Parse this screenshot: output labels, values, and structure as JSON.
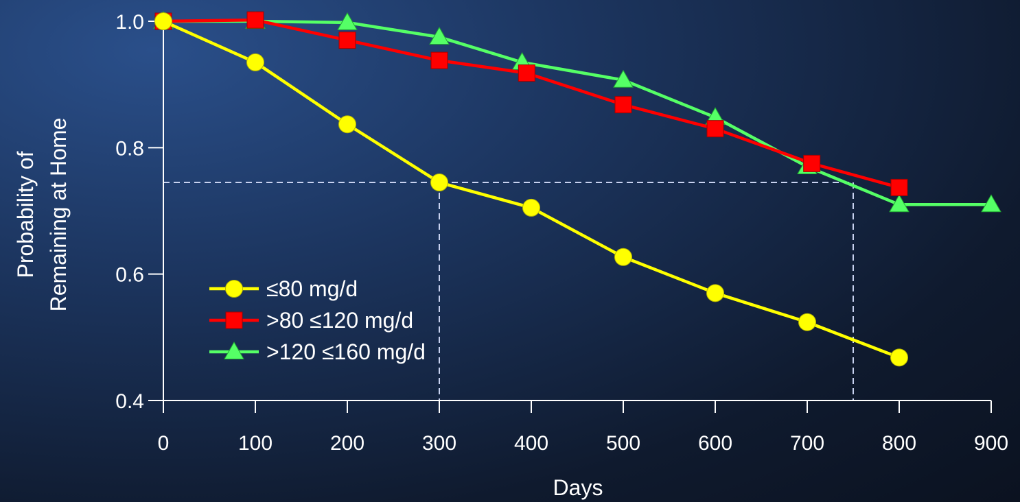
{
  "chart_data": {
    "type": "line",
    "xlabel": "Days",
    "ylabel_lines": [
      "Probability of",
      "Remaining at Home"
    ],
    "xlim": [
      0,
      900
    ],
    "ylim": [
      0.4,
      1.0
    ],
    "x_ticks": [
      "0",
      "100",
      "200",
      "300",
      "400",
      "500",
      "600",
      "700",
      "800",
      "900"
    ],
    "y_ticks": [
      "0.4",
      "0.6",
      "0.8",
      "1.0"
    ],
    "x_tick_values": [
      0,
      100,
      200,
      300,
      400,
      500,
      600,
      700,
      800,
      900
    ],
    "y_tick_values": [
      0.4,
      0.6,
      0.8,
      1.0
    ],
    "grid": false,
    "legend_position": "lower-left",
    "reference_lines": {
      "y": 0.745,
      "x": [
        300,
        750
      ],
      "style": "dashed",
      "color": "#c8d2f0"
    },
    "series": [
      {
        "name": "≤80 mg/d",
        "color": "#ffff00",
        "marker": "circle",
        "x": [
          0,
          100,
          200,
          300,
          400,
          500,
          600,
          700,
          800
        ],
        "y": [
          1.0,
          0.935,
          0.837,
          0.745,
          0.705,
          0.627,
          0.57,
          0.524,
          0.468
        ]
      },
      {
        "name": ">120 ≤160 mg/d",
        "color": "#55ff66",
        "marker": "triangle",
        "x": [
          0,
          100,
          200,
          300,
          390,
          500,
          600,
          700,
          800,
          900
        ],
        "y": [
          1.0,
          1.0,
          0.998,
          0.975,
          0.935,
          0.907,
          0.848,
          0.77,
          0.71,
          0.71
        ]
      },
      {
        "name": ">80 ≤120 mg/d",
        "color": "#ff0000",
        "marker": "square",
        "x": [
          0,
          100,
          200,
          300,
          395,
          500,
          600,
          705,
          800
        ],
        "y": [
          1.0,
          1.002,
          0.97,
          0.938,
          0.918,
          0.868,
          0.83,
          0.775,
          0.737
        ]
      }
    ],
    "legend_order": [
      0,
      2,
      1
    ]
  }
}
